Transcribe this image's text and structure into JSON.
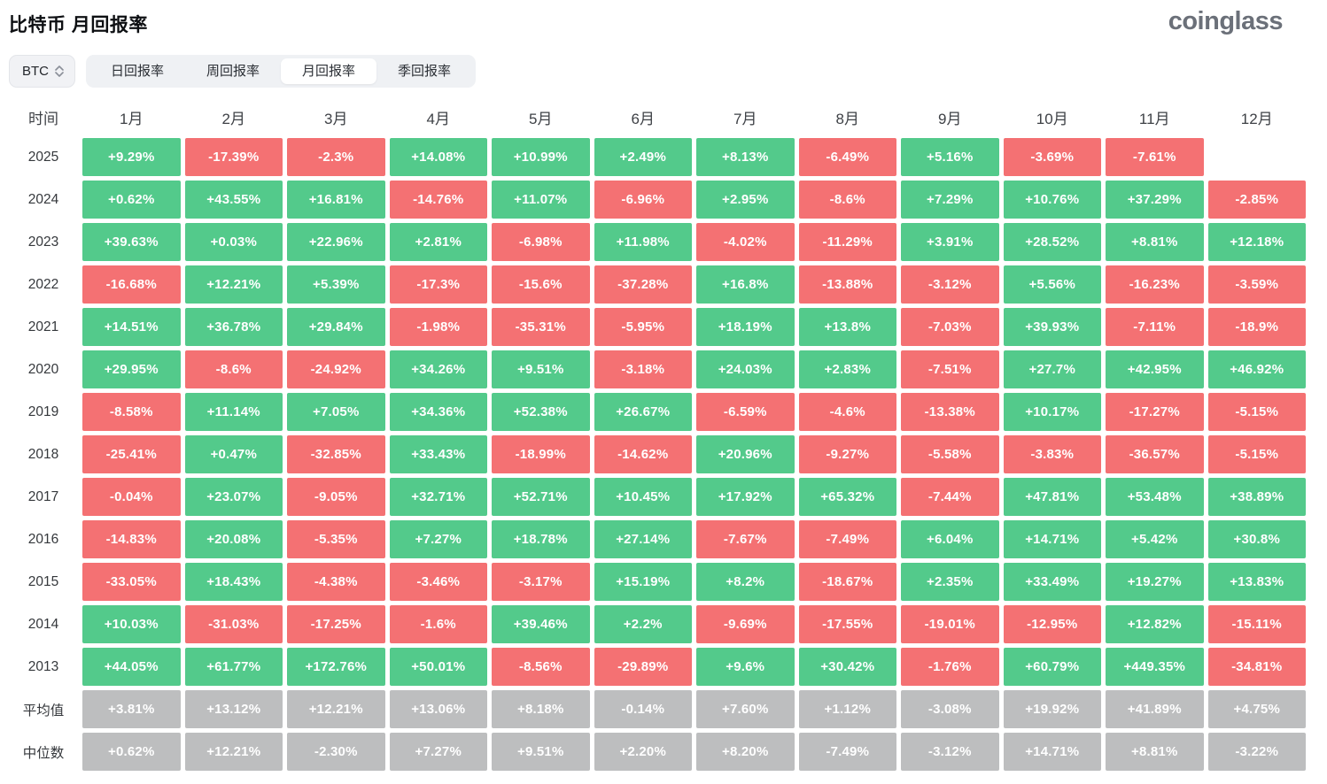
{
  "page": {
    "title": "比特币 月回报率",
    "logo": "coinglass"
  },
  "controls": {
    "coin_selector": {
      "value": "BTC",
      "icon": "updown-chevron-icon"
    },
    "tabs": [
      {
        "label": "日回报率",
        "active": false
      },
      {
        "label": "周回报率",
        "active": false
      },
      {
        "label": "月回报率",
        "active": true
      },
      {
        "label": "季回报率",
        "active": false
      }
    ]
  },
  "colors": {
    "positive": "#53ca8b",
    "negative": "#f47173",
    "neutral": "#bdbebf"
  },
  "chart_data": {
    "type": "heatmap",
    "title": "比特币 月回报率",
    "row_header": "时间",
    "columns": [
      "1月",
      "2月",
      "3月",
      "4月",
      "5月",
      "6月",
      "7月",
      "8月",
      "9月",
      "10月",
      "11月",
      "12月"
    ],
    "rows": [
      {
        "label": "2025",
        "type": "year",
        "values": [
          "+9.29%",
          "-17.39%",
          "-2.3%",
          "+14.08%",
          "+10.99%",
          "+2.49%",
          "+8.13%",
          "-6.49%",
          "+5.16%",
          "-3.69%",
          "-7.61%",
          null
        ]
      },
      {
        "label": "2024",
        "type": "year",
        "values": [
          "+0.62%",
          "+43.55%",
          "+16.81%",
          "-14.76%",
          "+11.07%",
          "-6.96%",
          "+2.95%",
          "-8.6%",
          "+7.29%",
          "+10.76%",
          "+37.29%",
          "-2.85%"
        ]
      },
      {
        "label": "2023",
        "type": "year",
        "values": [
          "+39.63%",
          "+0.03%",
          "+22.96%",
          "+2.81%",
          "-6.98%",
          "+11.98%",
          "-4.02%",
          "-11.29%",
          "+3.91%",
          "+28.52%",
          "+8.81%",
          "+12.18%"
        ]
      },
      {
        "label": "2022",
        "type": "year",
        "values": [
          "-16.68%",
          "+12.21%",
          "+5.39%",
          "-17.3%",
          "-15.6%",
          "-37.28%",
          "+16.8%",
          "-13.88%",
          "-3.12%",
          "+5.56%",
          "-16.23%",
          "-3.59%"
        ]
      },
      {
        "label": "2021",
        "type": "year",
        "values": [
          "+14.51%",
          "+36.78%",
          "+29.84%",
          "-1.98%",
          "-35.31%",
          "-5.95%",
          "+18.19%",
          "+13.8%",
          "-7.03%",
          "+39.93%",
          "-7.11%",
          "-18.9%"
        ]
      },
      {
        "label": "2020",
        "type": "year",
        "values": [
          "+29.95%",
          "-8.6%",
          "-24.92%",
          "+34.26%",
          "+9.51%",
          "-3.18%",
          "+24.03%",
          "+2.83%",
          "-7.51%",
          "+27.7%",
          "+42.95%",
          "+46.92%"
        ]
      },
      {
        "label": "2019",
        "type": "year",
        "values": [
          "-8.58%",
          "+11.14%",
          "+7.05%",
          "+34.36%",
          "+52.38%",
          "+26.67%",
          "-6.59%",
          "-4.6%",
          "-13.38%",
          "+10.17%",
          "-17.27%",
          "-5.15%"
        ]
      },
      {
        "label": "2018",
        "type": "year",
        "values": [
          "-25.41%",
          "+0.47%",
          "-32.85%",
          "+33.43%",
          "-18.99%",
          "-14.62%",
          "+20.96%",
          "-9.27%",
          "-5.58%",
          "-3.83%",
          "-36.57%",
          "-5.15%"
        ]
      },
      {
        "label": "2017",
        "type": "year",
        "values": [
          "-0.04%",
          "+23.07%",
          "-9.05%",
          "+32.71%",
          "+52.71%",
          "+10.45%",
          "+17.92%",
          "+65.32%",
          "-7.44%",
          "+47.81%",
          "+53.48%",
          "+38.89%"
        ]
      },
      {
        "label": "2016",
        "type": "year",
        "values": [
          "-14.83%",
          "+20.08%",
          "-5.35%",
          "+7.27%",
          "+18.78%",
          "+27.14%",
          "-7.67%",
          "-7.49%",
          "+6.04%",
          "+14.71%",
          "+5.42%",
          "+30.8%"
        ]
      },
      {
        "label": "2015",
        "type": "year",
        "values": [
          "-33.05%",
          "+18.43%",
          "-4.38%",
          "-3.46%",
          "-3.17%",
          "+15.19%",
          "+8.2%",
          "-18.67%",
          "+2.35%",
          "+33.49%",
          "+19.27%",
          "+13.83%"
        ]
      },
      {
        "label": "2014",
        "type": "year",
        "values": [
          "+10.03%",
          "-31.03%",
          "-17.25%",
          "-1.6%",
          "+39.46%",
          "+2.2%",
          "-9.69%",
          "-17.55%",
          "-19.01%",
          "-12.95%",
          "+12.82%",
          "-15.11%"
        ]
      },
      {
        "label": "2013",
        "type": "year",
        "values": [
          "+44.05%",
          "+61.77%",
          "+172.76%",
          "+50.01%",
          "-8.56%",
          "-29.89%",
          "+9.6%",
          "+30.42%",
          "-1.76%",
          "+60.79%",
          "+449.35%",
          "-34.81%"
        ]
      },
      {
        "label": "平均值",
        "type": "stat",
        "values": [
          "+3.81%",
          "+13.12%",
          "+12.21%",
          "+13.06%",
          "+8.18%",
          "-0.14%",
          "+7.60%",
          "+1.12%",
          "-3.08%",
          "+19.92%",
          "+41.89%",
          "+4.75%"
        ]
      },
      {
        "label": "中位数",
        "type": "stat",
        "values": [
          "+0.62%",
          "+12.21%",
          "-2.30%",
          "+7.27%",
          "+9.51%",
          "+2.20%",
          "+8.20%",
          "-7.49%",
          "-3.12%",
          "+14.71%",
          "+8.81%",
          "-3.22%"
        ]
      }
    ]
  }
}
